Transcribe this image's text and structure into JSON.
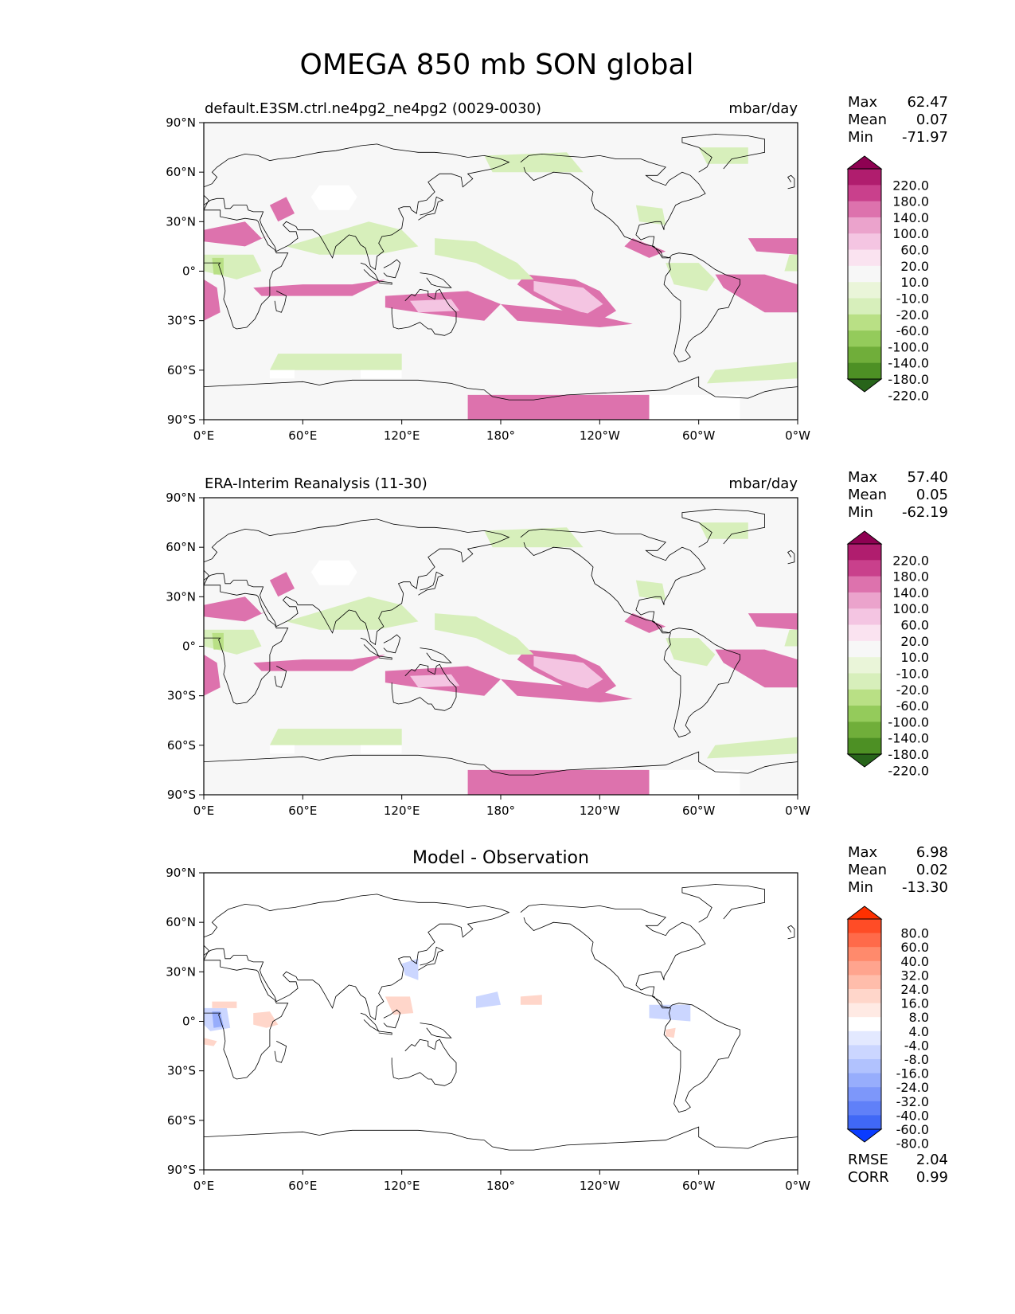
{
  "figure": {
    "title": "OMEGA 850 mb SON global"
  },
  "axes": {
    "lat_ticks": [
      "90°N",
      "60°N",
      "30°N",
      "0°",
      "30°S",
      "60°S",
      "90°S"
    ],
    "lon_ticks": [
      "0°E",
      "60°E",
      "120°E",
      "180°",
      "120°W",
      "60°W",
      "0°W"
    ]
  },
  "panels": [
    {
      "left_title": "default.E3SM.ctrl.ne4pg2_ne4pg2 (0029-0030)",
      "right_title": "mbar/day",
      "center_title": "",
      "stats": [
        {
          "label": "Max",
          "value": "62.47"
        },
        {
          "label": "Mean",
          "value": "0.07"
        },
        {
          "label": "Min",
          "value": "-71.97"
        }
      ],
      "colorbar": {
        "ticks": [
          "220.0",
          "180.0",
          "140.0",
          "100.0",
          "60.0",
          "20.0",
          "10.0",
          "-10.0",
          "-20.0",
          "-60.0",
          "-100.0",
          "-140.0",
          "-180.0",
          "-220.0"
        ],
        "colors": [
          "#8e0152",
          "#b01d6e",
          "#c9408c",
          "#dd72ad",
          "#eba3cc",
          "#f4c5e2",
          "#fae3f0",
          "#f7f7f7",
          "#eaf5d9",
          "#d7efbb",
          "#b9e085",
          "#94cb5b",
          "#70ae3a",
          "#4d9024",
          "#27641a"
        ]
      },
      "footer_stats": []
    },
    {
      "left_title": "ERA-Interim Reanalysis (11-30)",
      "right_title": "mbar/day",
      "center_title": "",
      "stats": [
        {
          "label": "Max",
          "value": "57.40"
        },
        {
          "label": "Mean",
          "value": "0.05"
        },
        {
          "label": "Min",
          "value": "-62.19"
        }
      ],
      "colorbar": {
        "ticks": [
          "220.0",
          "180.0",
          "140.0",
          "100.0",
          "60.0",
          "20.0",
          "10.0",
          "-10.0",
          "-20.0",
          "-60.0",
          "-100.0",
          "-140.0",
          "-180.0",
          "-220.0"
        ],
        "colors": [
          "#8e0152",
          "#b01d6e",
          "#c9408c",
          "#dd72ad",
          "#eba3cc",
          "#f4c5e2",
          "#fae3f0",
          "#f7f7f7",
          "#eaf5d9",
          "#d7efbb",
          "#b9e085",
          "#94cb5b",
          "#70ae3a",
          "#4d9024",
          "#27641a"
        ]
      },
      "footer_stats": []
    },
    {
      "left_title": "",
      "right_title": "",
      "center_title": "Model - Observation",
      "stats": [
        {
          "label": "Max",
          "value": "6.98"
        },
        {
          "label": "Mean",
          "value": "0.02"
        },
        {
          "label": "Min",
          "value": "-13.30"
        }
      ],
      "colorbar": {
        "ticks": [
          "80.0",
          "60.0",
          "40.0",
          "32.0",
          "24.0",
          "16.0",
          "8.0",
          "4.0",
          "-4.0",
          "-8.0",
          "-16.0",
          "-24.0",
          "-32.0",
          "-40.0",
          "-60.0",
          "-80.0"
        ],
        "colors": [
          "#ff3000",
          "#ff4c26",
          "#ff6a4a",
          "#ff8a6c",
          "#ffa48e",
          "#ffbdab",
          "#ffd6ca",
          "#ffeae4",
          "#ffffff",
          "#e3e9ff",
          "#cbd6ff",
          "#b1c2fe",
          "#97adfc",
          "#7d97fa",
          "#6080f8",
          "#4068f6",
          "#0a3cff"
        ]
      },
      "footer_stats": [
        {
          "label": "RMSE",
          "value": "2.04"
        },
        {
          "label": "CORR",
          "value": "0.99"
        }
      ]
    }
  ],
  "colors": {
    "map_background_panel1": "#f7f7f7",
    "map_background_panel3": "#ffffff",
    "coastline": "#000000"
  }
}
